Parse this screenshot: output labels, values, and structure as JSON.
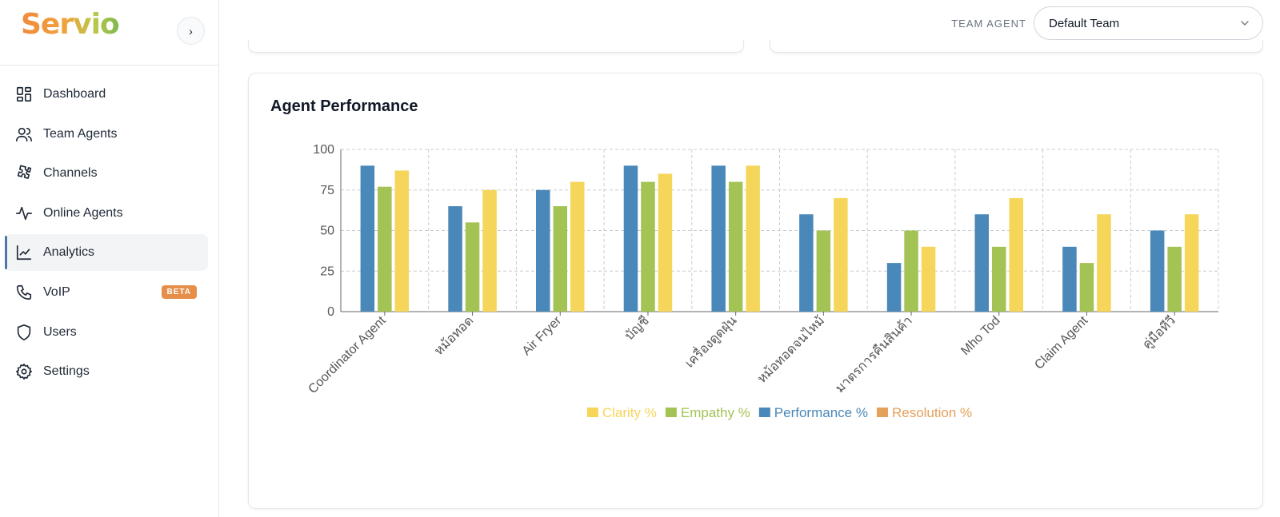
{
  "brand": {
    "name": "Servio"
  },
  "sidebar": {
    "collapse_label": "›",
    "items": [
      {
        "label": "Dashboard",
        "icon": "dashboard-icon",
        "active": false
      },
      {
        "label": "Team Agents",
        "icon": "users-icon",
        "active": false
      },
      {
        "label": "Channels",
        "icon": "puzzle-icon",
        "active": false
      },
      {
        "label": "Online Agents",
        "icon": "activity-icon",
        "active": false
      },
      {
        "label": "Analytics",
        "icon": "chart-line-icon",
        "active": true
      },
      {
        "label": "VoIP",
        "icon": "phone-icon",
        "active": false,
        "badge": "BETA"
      },
      {
        "label": "Users",
        "icon": "shield-icon",
        "active": false
      },
      {
        "label": "Settings",
        "icon": "gear-icon",
        "active": false
      }
    ]
  },
  "header": {
    "team_label": "TEAM AGENT",
    "team_selected": "Default Team"
  },
  "colors": {
    "accent": "#4b7aa6",
    "badge": "#e58f4a",
    "clarity": "#f5d55a",
    "empathy": "#a3c355",
    "performance": "#4a88b9",
    "resolution": "#e3a15a"
  },
  "card": {
    "title": "Agent Performance"
  },
  "chart_data": {
    "type": "bar",
    "title": "Agent Performance",
    "xlabel": "",
    "ylabel": "",
    "ylim": [
      0,
      100
    ],
    "yticks": [
      0,
      25,
      50,
      75,
      100
    ],
    "grid": true,
    "legend_position": "bottom",
    "categories": [
      "Coordinator Agent",
      "หม้อทอด",
      "Air Fryer",
      "บัญชี",
      "เครื่องดูดฝุ่น",
      "หม้อทอดจนไหม้",
      "มาตรการคืนสินค้า",
      "Mho Tod",
      "Claim Agent",
      "คู่มือทีวี"
    ],
    "series": [
      {
        "name": "Performance %",
        "color": "#4a88b9",
        "values": [
          90,
          65,
          75,
          90,
          90,
          60,
          30,
          60,
          40,
          50
        ]
      },
      {
        "name": "Empathy %",
        "color": "#a3c355",
        "values": [
          77,
          55,
          65,
          80,
          80,
          50,
          50,
          40,
          30,
          40
        ]
      },
      {
        "name": "Clarity %",
        "color": "#f5d55a",
        "values": [
          87,
          75,
          80,
          85,
          90,
          70,
          40,
          70,
          60,
          60
        ]
      }
    ],
    "legend": [
      {
        "name": "Clarity %",
        "color": "#f5d55a"
      },
      {
        "name": "Empathy %",
        "color": "#a3c355"
      },
      {
        "name": "Performance %",
        "color": "#4a88b9"
      },
      {
        "name": "Resolution %",
        "color": "#e3a15a"
      }
    ]
  }
}
